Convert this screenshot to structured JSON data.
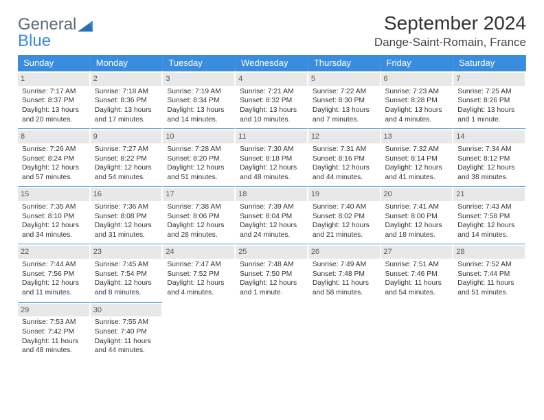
{
  "brand": {
    "g": "General",
    "b": "Blue"
  },
  "title": "September 2024",
  "location": "Dange-Saint-Romain, France",
  "colors": {
    "accent": "#3a8dde",
    "header_text": "#ffffff",
    "daynum_bg": "#e8e8e8",
    "text": "#333333"
  },
  "weekdays": [
    "Sunday",
    "Monday",
    "Tuesday",
    "Wednesday",
    "Thursday",
    "Friday",
    "Saturday"
  ],
  "days": [
    {
      "n": "1",
      "sr": "7:17 AM",
      "ss": "8:37 PM",
      "dl": "13 hours and 20 minutes."
    },
    {
      "n": "2",
      "sr": "7:18 AM",
      "ss": "8:36 PM",
      "dl": "13 hours and 17 minutes."
    },
    {
      "n": "3",
      "sr": "7:19 AM",
      "ss": "8:34 PM",
      "dl": "13 hours and 14 minutes."
    },
    {
      "n": "4",
      "sr": "7:21 AM",
      "ss": "8:32 PM",
      "dl": "13 hours and 10 minutes."
    },
    {
      "n": "5",
      "sr": "7:22 AM",
      "ss": "8:30 PM",
      "dl": "13 hours and 7 minutes."
    },
    {
      "n": "6",
      "sr": "7:23 AM",
      "ss": "8:28 PM",
      "dl": "13 hours and 4 minutes."
    },
    {
      "n": "7",
      "sr": "7:25 AM",
      "ss": "8:26 PM",
      "dl": "13 hours and 1 minute."
    },
    {
      "n": "8",
      "sr": "7:26 AM",
      "ss": "8:24 PM",
      "dl": "12 hours and 57 minutes."
    },
    {
      "n": "9",
      "sr": "7:27 AM",
      "ss": "8:22 PM",
      "dl": "12 hours and 54 minutes."
    },
    {
      "n": "10",
      "sr": "7:28 AM",
      "ss": "8:20 PM",
      "dl": "12 hours and 51 minutes."
    },
    {
      "n": "11",
      "sr": "7:30 AM",
      "ss": "8:18 PM",
      "dl": "12 hours and 48 minutes."
    },
    {
      "n": "12",
      "sr": "7:31 AM",
      "ss": "8:16 PM",
      "dl": "12 hours and 44 minutes."
    },
    {
      "n": "13",
      "sr": "7:32 AM",
      "ss": "8:14 PM",
      "dl": "12 hours and 41 minutes."
    },
    {
      "n": "14",
      "sr": "7:34 AM",
      "ss": "8:12 PM",
      "dl": "12 hours and 38 minutes."
    },
    {
      "n": "15",
      "sr": "7:35 AM",
      "ss": "8:10 PM",
      "dl": "12 hours and 34 minutes."
    },
    {
      "n": "16",
      "sr": "7:36 AM",
      "ss": "8:08 PM",
      "dl": "12 hours and 31 minutes."
    },
    {
      "n": "17",
      "sr": "7:38 AM",
      "ss": "8:06 PM",
      "dl": "12 hours and 28 minutes."
    },
    {
      "n": "18",
      "sr": "7:39 AM",
      "ss": "8:04 PM",
      "dl": "12 hours and 24 minutes."
    },
    {
      "n": "19",
      "sr": "7:40 AM",
      "ss": "8:02 PM",
      "dl": "12 hours and 21 minutes."
    },
    {
      "n": "20",
      "sr": "7:41 AM",
      "ss": "8:00 PM",
      "dl": "12 hours and 18 minutes."
    },
    {
      "n": "21",
      "sr": "7:43 AM",
      "ss": "7:58 PM",
      "dl": "12 hours and 14 minutes."
    },
    {
      "n": "22",
      "sr": "7:44 AM",
      "ss": "7:56 PM",
      "dl": "12 hours and 11 minutes."
    },
    {
      "n": "23",
      "sr": "7:45 AM",
      "ss": "7:54 PM",
      "dl": "12 hours and 8 minutes."
    },
    {
      "n": "24",
      "sr": "7:47 AM",
      "ss": "7:52 PM",
      "dl": "12 hours and 4 minutes."
    },
    {
      "n": "25",
      "sr": "7:48 AM",
      "ss": "7:50 PM",
      "dl": "12 hours and 1 minute."
    },
    {
      "n": "26",
      "sr": "7:49 AM",
      "ss": "7:48 PM",
      "dl": "11 hours and 58 minutes."
    },
    {
      "n": "27",
      "sr": "7:51 AM",
      "ss": "7:46 PM",
      "dl": "11 hours and 54 minutes."
    },
    {
      "n": "28",
      "sr": "7:52 AM",
      "ss": "7:44 PM",
      "dl": "11 hours and 51 minutes."
    },
    {
      "n": "29",
      "sr": "7:53 AM",
      "ss": "7:42 PM",
      "dl": "11 hours and 48 minutes."
    },
    {
      "n": "30",
      "sr": "7:55 AM",
      "ss": "7:40 PM",
      "dl": "11 hours and 44 minutes."
    }
  ],
  "labels": {
    "sunrise": "Sunrise: ",
    "sunset": "Sunset: ",
    "daylight": "Daylight: "
  }
}
